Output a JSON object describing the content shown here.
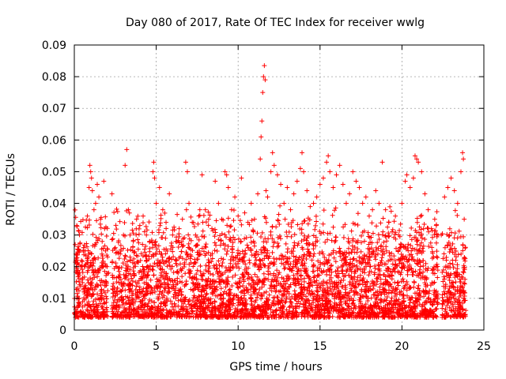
{
  "chart_data": {
    "type": "scatter",
    "title": "Day 080 of 2017, Rate Of TEC Index for receiver wwlg",
    "xlabel": "GPS time / hours",
    "ylabel": "ROTI / TECUs",
    "xlim": [
      0,
      25
    ],
    "ylim": [
      0,
      0.09
    ],
    "x_ticks": [
      0,
      5,
      10,
      15,
      20,
      25
    ],
    "y_ticks": [
      0,
      0.01,
      0.02,
      0.03,
      0.04,
      0.05,
      0.06,
      0.07,
      0.08,
      0.09
    ],
    "x_tick_labels": [
      "0",
      "5",
      "10",
      "15",
      "20",
      "25"
    ],
    "y_tick_labels": [
      "0",
      "0.01",
      "0.02",
      "0.03",
      "0.04",
      "0.05",
      "0.06",
      "0.07",
      "0.08",
      "0.09"
    ],
    "grid": true,
    "marker": "+",
    "color": "#ff0000",
    "points": [
      [
        0.05,
        0.027
      ],
      [
        0.1,
        0.022
      ],
      [
        0.15,
        0.033
      ],
      [
        0.2,
        0.018
      ],
      [
        0.3,
        0.025
      ],
      [
        0.4,
        0.02
      ],
      [
        0.5,
        0.015
      ],
      [
        0.6,
        0.012
      ],
      [
        0.7,
        0.014
      ],
      [
        0.8,
        0.036
      ],
      [
        0.9,
        0.045
      ],
      [
        0.95,
        0.052
      ],
      [
        1.0,
        0.05
      ],
      [
        1.05,
        0.048
      ],
      [
        1.1,
        0.044
      ],
      [
        1.2,
        0.038
      ],
      [
        1.3,
        0.04
      ],
      [
        1.4,
        0.046
      ],
      [
        1.5,
        0.042
      ],
      [
        1.6,
        0.035
      ],
      [
        1.7,
        0.028
      ],
      [
        1.8,
        0.047
      ],
      [
        1.85,
        0.032
      ],
      [
        1.9,
        0.025
      ],
      [
        2.0,
        0.02
      ],
      [
        2.1,
        0.018
      ],
      [
        2.3,
        0.043
      ],
      [
        2.5,
        0.026
      ],
      [
        2.6,
        0.02
      ],
      [
        2.8,
        0.024
      ],
      [
        3.0,
        0.03
      ],
      [
        3.1,
        0.052
      ],
      [
        3.2,
        0.057
      ],
      [
        3.3,
        0.038
      ],
      [
        3.4,
        0.03
      ],
      [
        3.6,
        0.028
      ],
      [
        3.8,
        0.035
      ],
      [
        4.0,
        0.033
      ],
      [
        4.2,
        0.036
      ],
      [
        4.4,
        0.03
      ],
      [
        4.6,
        0.028
      ],
      [
        4.8,
        0.05
      ],
      [
        4.85,
        0.053
      ],
      [
        4.9,
        0.048
      ],
      [
        5.0,
        0.04
      ],
      [
        5.2,
        0.045
      ],
      [
        5.4,
        0.038
      ],
      [
        5.6,
        0.034
      ],
      [
        5.8,
        0.043
      ],
      [
        6.0,
        0.03
      ],
      [
        6.2,
        0.028
      ],
      [
        6.4,
        0.032
      ],
      [
        6.6,
        0.035
      ],
      [
        6.8,
        0.053
      ],
      [
        6.9,
        0.05
      ],
      [
        7.0,
        0.04
      ],
      [
        7.2,
        0.034
      ],
      [
        7.4,
        0.03
      ],
      [
        7.6,
        0.036
      ],
      [
        7.8,
        0.049
      ],
      [
        8.0,
        0.038
      ],
      [
        8.2,
        0.035
      ],
      [
        8.4,
        0.032
      ],
      [
        8.6,
        0.047
      ],
      [
        8.8,
        0.04
      ],
      [
        9.0,
        0.035
      ],
      [
        9.2,
        0.05
      ],
      [
        9.3,
        0.049
      ],
      [
        9.4,
        0.045
      ],
      [
        9.6,
        0.038
      ],
      [
        9.8,
        0.042
      ],
      [
        10.0,
        0.036
      ],
      [
        10.2,
        0.048
      ],
      [
        10.4,
        0.037
      ],
      [
        10.6,
        0.034
      ],
      [
        10.8,
        0.04
      ],
      [
        11.0,
        0.035
      ],
      [
        11.2,
        0.043
      ],
      [
        11.35,
        0.054
      ],
      [
        11.4,
        0.061
      ],
      [
        11.45,
        0.066
      ],
      [
        11.5,
        0.075
      ],
      [
        11.55,
        0.08
      ],
      [
        11.6,
        0.0835
      ],
      [
        11.65,
        0.079
      ],
      [
        11.7,
        0.044
      ],
      [
        11.8,
        0.042
      ],
      [
        12.0,
        0.05
      ],
      [
        12.1,
        0.056
      ],
      [
        12.2,
        0.052
      ],
      [
        12.4,
        0.049
      ],
      [
        12.6,
        0.046
      ],
      [
        12.8,
        0.04
      ],
      [
        13.0,
        0.045
      ],
      [
        13.2,
        0.038
      ],
      [
        13.4,
        0.043
      ],
      [
        13.6,
        0.047
      ],
      [
        13.8,
        0.051
      ],
      [
        13.9,
        0.056
      ],
      [
        14.0,
        0.05
      ],
      [
        14.2,
        0.044
      ],
      [
        14.4,
        0.039
      ],
      [
        14.6,
        0.04
      ],
      [
        14.8,
        0.042
      ],
      [
        15.0,
        0.046
      ],
      [
        15.2,
        0.048
      ],
      [
        15.4,
        0.053
      ],
      [
        15.5,
        0.055
      ],
      [
        15.6,
        0.05
      ],
      [
        15.8,
        0.045
      ],
      [
        16.0,
        0.049
      ],
      [
        16.2,
        0.052
      ],
      [
        16.4,
        0.046
      ],
      [
        16.6,
        0.04
      ],
      [
        16.8,
        0.043
      ],
      [
        17.0,
        0.05
      ],
      [
        17.2,
        0.047
      ],
      [
        17.4,
        0.045
      ],
      [
        17.6,
        0.04
      ],
      [
        17.8,
        0.042
      ],
      [
        18.0,
        0.036
      ],
      [
        18.2,
        0.038
      ],
      [
        18.4,
        0.044
      ],
      [
        18.6,
        0.04
      ],
      [
        18.8,
        0.053
      ],
      [
        19.0,
        0.038
      ],
      [
        19.2,
        0.034
      ],
      [
        19.4,
        0.031
      ],
      [
        19.6,
        0.036
      ],
      [
        19.8,
        0.03
      ],
      [
        20.0,
        0.04
      ],
      [
        20.2,
        0.047
      ],
      [
        20.3,
        0.049
      ],
      [
        20.5,
        0.045
      ],
      [
        20.7,
        0.048
      ],
      [
        20.8,
        0.055
      ],
      [
        20.9,
        0.054
      ],
      [
        21.0,
        0.053
      ],
      [
        21.2,
        0.05
      ],
      [
        21.4,
        0.043
      ],
      [
        21.6,
        0.038
      ],
      [
        21.8,
        0.032
      ],
      [
        22.0,
        0.035
      ],
      [
        22.2,
        0.03
      ],
      [
        22.4,
        0.03
      ],
      [
        22.6,
        0.042
      ],
      [
        22.8,
        0.045
      ],
      [
        23.0,
        0.048
      ],
      [
        23.2,
        0.044
      ],
      [
        23.4,
        0.04
      ],
      [
        23.6,
        0.05
      ],
      [
        23.7,
        0.056
      ],
      [
        23.75,
        0.054
      ],
      [
        23.8,
        0.035
      ]
    ]
  }
}
